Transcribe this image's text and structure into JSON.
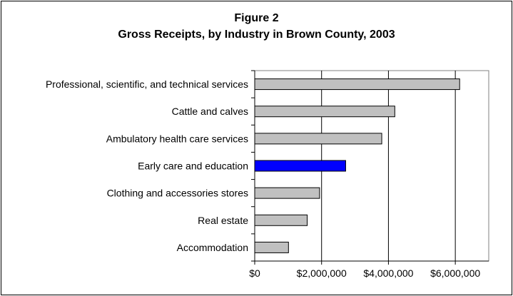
{
  "chart_data": {
    "type": "bar",
    "orientation": "horizontal",
    "title": "Figure 2",
    "subtitle": "Gross Receipts, by Industry in Brown County, 2003",
    "xlabel": "",
    "ylabel": "",
    "categories": [
      "Professional, scientific, and technical services",
      "Cattle and calves",
      "Ambulatory health care services",
      "Early care and education",
      "Clothing and accessories stores",
      "Real estate",
      "Accommodation"
    ],
    "values": [
      6130000,
      4190000,
      3800000,
      2720000,
      1940000,
      1570000,
      1010000
    ],
    "bar_colors": [
      "#c0c0c0",
      "#c0c0c0",
      "#c0c0c0",
      "#0000ff",
      "#c0c0c0",
      "#c0c0c0",
      "#c0c0c0"
    ],
    "xlim": [
      0,
      7000000
    ],
    "xticks": [
      0,
      2000000,
      4000000,
      6000000
    ],
    "xtick_labels": [
      "$0",
      "$2,000,000",
      "$4,000,000",
      "$6,000,000"
    ],
    "grid": "vertical",
    "legend": "none"
  }
}
